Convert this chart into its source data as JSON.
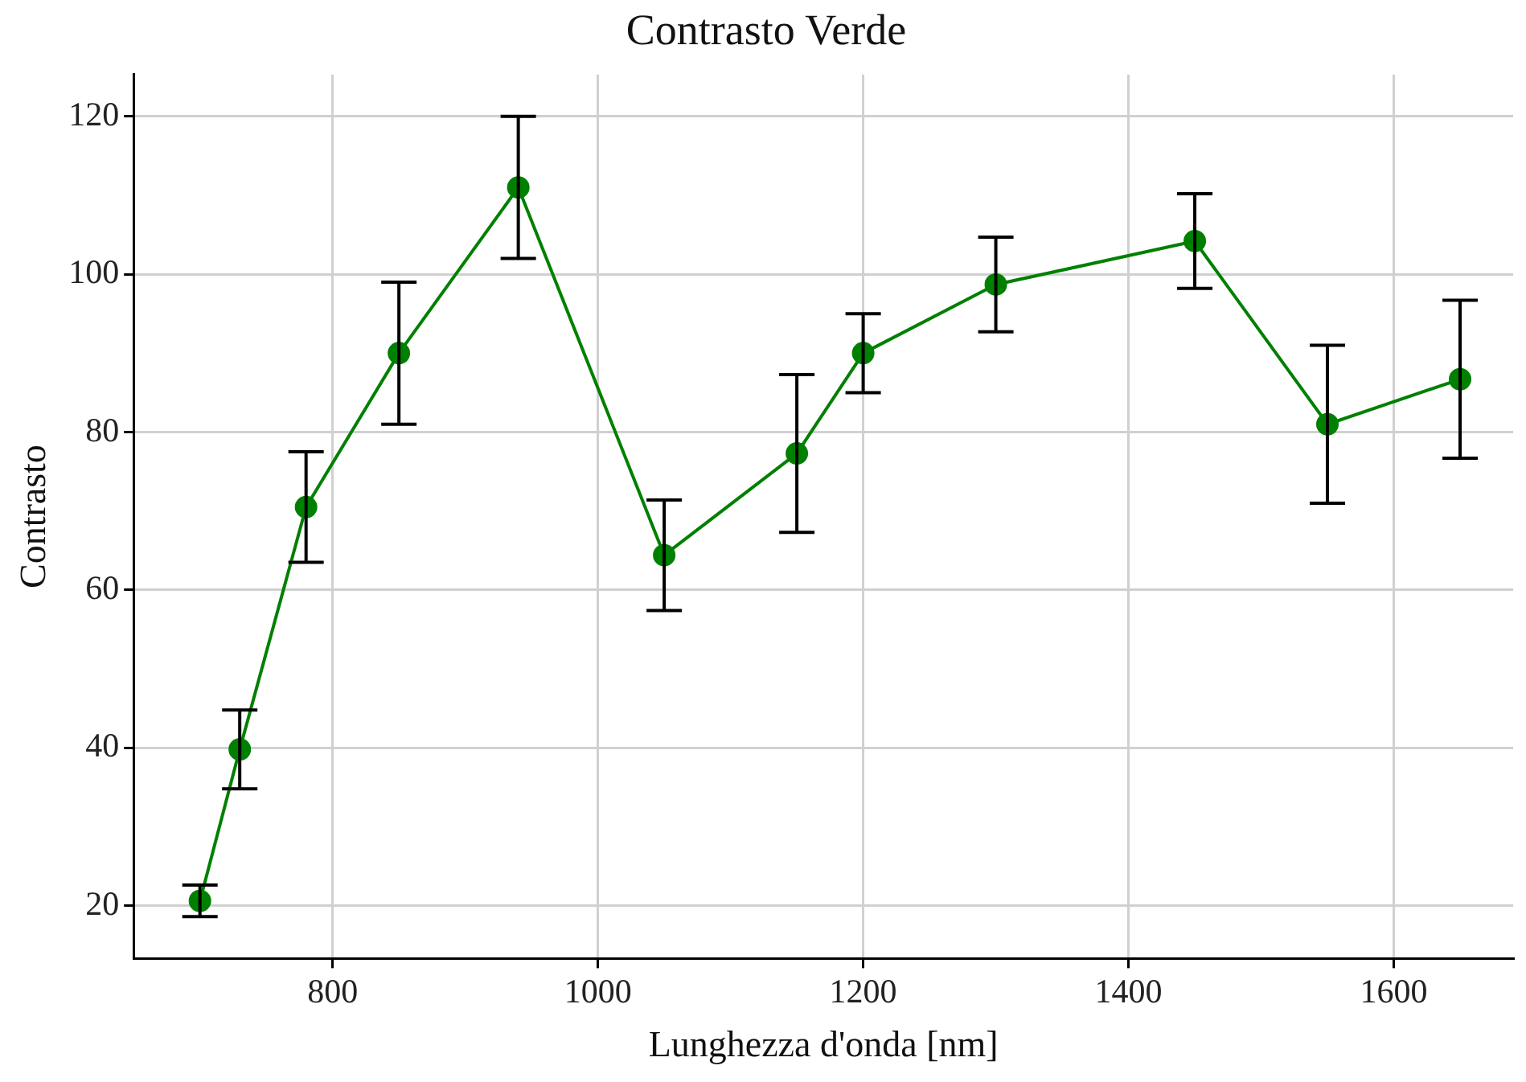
{
  "chart_data": {
    "type": "line",
    "title": "Contrasto Verde",
    "xlabel": "Lunghezza d'onda [nm]",
    "ylabel": "Contrasto",
    "x": [
      700,
      730,
      780,
      850,
      940,
      1050,
      1150,
      1200,
      1300,
      1450,
      1550,
      1650
    ],
    "series": [
      {
        "color": "#008000",
        "values": [
          20.6,
          39.8,
          70.5,
          90,
          111,
          64.4,
          77.3,
          90,
          98.7,
          104.2,
          81,
          86.7
        ],
        "errors": [
          2,
          5,
          7,
          9,
          9,
          7,
          10,
          5,
          6,
          6,
          10,
          10
        ]
      }
    ],
    "xlim": [
      650,
      1690
    ],
    "ylim": [
      13.3,
      125.3
    ],
    "xticks": [
      800,
      1000,
      1200,
      1400,
      1600
    ],
    "yticks": [
      20,
      40,
      60,
      80,
      100,
      120
    ],
    "grid": true,
    "marker": "circle",
    "line_style": "solid",
    "legend": false
  }
}
